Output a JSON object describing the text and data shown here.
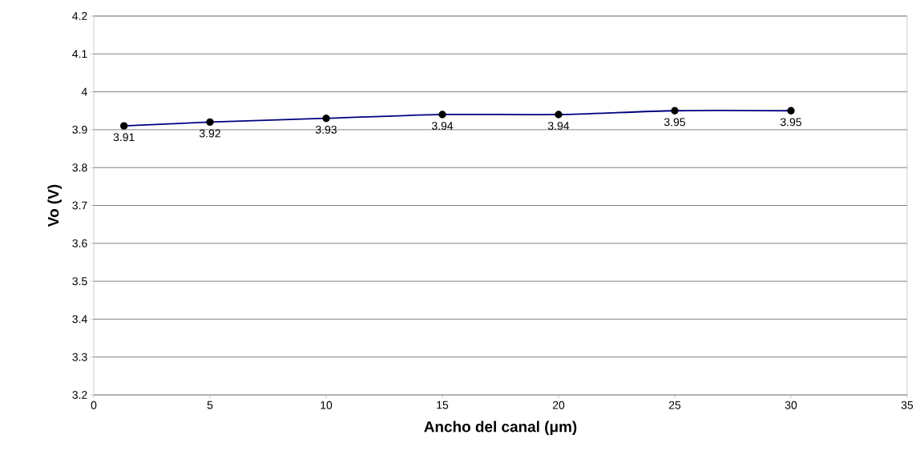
{
  "chart_data": {
    "type": "line",
    "xlabel": "Ancho del canal (μm)",
    "ylabel": "Vo (V)",
    "x": [
      1.3,
      5,
      10,
      15,
      20,
      25,
      30
    ],
    "series": [
      {
        "color": "#000080",
        "values": [
          3.91,
          3.92,
          3.93,
          3.94,
          3.94,
          3.95,
          3.95
        ]
      }
    ],
    "xlim": [
      0,
      35
    ],
    "xticks": [
      0,
      5,
      10,
      15,
      20,
      25,
      30,
      35
    ],
    "ylim": [
      3.2,
      4.2
    ],
    "yticks": [
      3.2,
      3.3,
      3.4,
      3.5,
      3.6,
      3.7,
      3.8,
      3.9,
      4,
      4.1,
      4.2
    ],
    "grid": "y",
    "marker": "circle",
    "line_style": "solid",
    "data_labels": true
  }
}
